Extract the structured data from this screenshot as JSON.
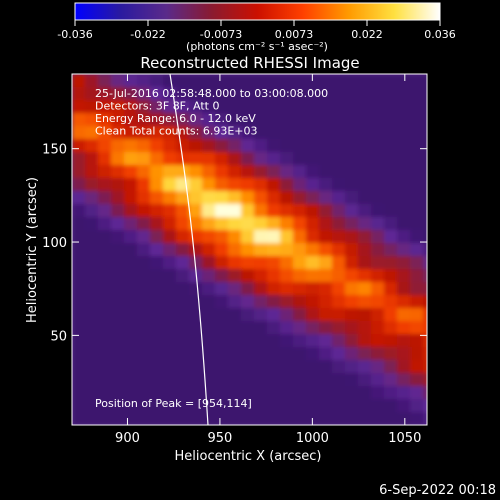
{
  "colorbar": {
    "ticks": [
      "-0.036",
      "-0.022",
      "-0.0073",
      "0.0073",
      "0.022",
      "0.036"
    ],
    "unit_label": "(photons cm⁻² s⁻¹ asec⁻²)",
    "stops": [
      "#0000ff",
      "#2a1aa0",
      "#5a2a8a",
      "#8a1a30",
      "#cc1000",
      "#ff4000",
      "#ff9a00",
      "#ffe040",
      "#ffffff"
    ]
  },
  "plot": {
    "title": "Reconstructed RHESSI Image",
    "annotation_lines": [
      "25-Jul-2016 02:58:48.000 to 03:00:08.000",
      "Detectors: 3F 8F, Att 0",
      "Energy Range: 6.0 - 12.0 keV",
      "Clean     Total counts: 6.93E+03"
    ],
    "peak_label": "Position of Peak = [954,114]",
    "footer_timestamp": "6-Sep-2022 00:18"
  },
  "chart_data": {
    "type": "heatmap",
    "title": "Reconstructed RHESSI Image",
    "xlabel": "Heliocentric X (arcsec)",
    "ylabel": "Heliocentric Y (arcsec)",
    "xlim": [
      870,
      1062
    ],
    "ylim": [
      2,
      190
    ],
    "x_ticks": [
      900,
      950,
      1000,
      1050
    ],
    "y_ticks": [
      50,
      100,
      150
    ],
    "colorbar_range": [
      -0.036,
      0.036
    ],
    "peak_position": [
      954,
      114
    ],
    "grid": false
  }
}
